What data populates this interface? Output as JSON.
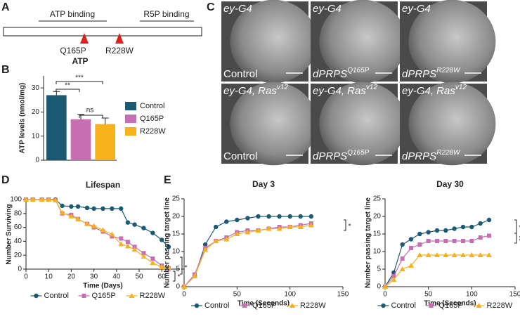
{
  "panel_labels": [
    "A",
    "B",
    "C",
    "D",
    "E"
  ],
  "protein_diagram": {
    "domains": [
      "ATP binding",
      "R5P binding"
    ],
    "mutations": [
      "Q165P",
      "R228W"
    ]
  },
  "eye_images": [
    {
      "genotype": {
        "base": "ey-G4"
      },
      "label": {
        "base": "Control"
      }
    },
    {
      "genotype": {
        "base": "ey-G4"
      },
      "label": {
        "base": "dPRPS",
        "sup": "Q165P"
      }
    },
    {
      "genotype": {
        "base": "ey-G4"
      },
      "label": {
        "base": "dPRPS",
        "sup": "R228W"
      }
    },
    {
      "genotype": {
        "base": "ey-G4, Ras",
        "sup": "v12"
      },
      "label": {
        "base": "Control"
      }
    },
    {
      "genotype": {
        "base": "ey-G4, Ras",
        "sup": "v12"
      },
      "label": {
        "base": "dPRPS",
        "sup": "Q165P"
      }
    },
    {
      "genotype": {
        "base": "ey-G4, Ras",
        "sup": "v12"
      },
      "label": {
        "base": "dPRPS",
        "sup": "R228W"
      }
    }
  ],
  "chart_data": [
    {
      "type": "bar",
      "title": "ATP",
      "ylabel": "ATP levels (nmol/mg)",
      "categories": [
        "Control",
        "Q165P",
        "R228W"
      ],
      "values": [
        27,
        17,
        15
      ],
      "errors": [
        1.5,
        2,
        2.5
      ],
      "colors": [
        "#1b5a72",
        "#c76fb3",
        "#f7b21b"
      ],
      "ylim": [
        0,
        35
      ],
      "yticks": [
        0,
        10,
        20,
        30
      ],
      "annotations": [
        "**",
        "***",
        "ns"
      ],
      "legend": "right"
    },
    {
      "type": "line",
      "title": "Lifespan",
      "xlabel": "Time (Days)",
      "ylabel": "Number Surviving",
      "x": [
        0,
        3,
        7,
        10,
        13,
        16,
        20,
        23,
        27,
        30,
        34,
        38,
        42,
        45,
        48,
        52,
        56,
        60,
        63
      ],
      "series": [
        {
          "name": "Control",
          "color": "#1b5a72",
          "marker": "circle",
          "values": [
            100,
            100,
            100,
            100,
            100,
            91,
            90,
            90,
            88,
            87,
            87,
            87,
            87,
            67,
            64,
            59,
            52,
            42,
            32
          ]
        },
        {
          "name": "Q165P",
          "color": "#c76fb3",
          "marker": "square",
          "values": [
            100,
            100,
            100,
            100,
            99,
            80,
            78,
            72,
            65,
            60,
            54,
            47,
            44,
            39,
            32,
            23,
            15,
            5,
            1
          ]
        },
        {
          "name": "R228W",
          "color": "#f7b21b",
          "marker": "triangle",
          "values": [
            100,
            100,
            100,
            100,
            99,
            81,
            76,
            72,
            65,
            62,
            56,
            50,
            36,
            33,
            28,
            18,
            9,
            3,
            2
          ]
        }
      ],
      "xlim": [
        0,
        68
      ],
      "xticks": [
        0,
        10,
        20,
        30,
        40,
        50,
        60
      ],
      "ylim": [
        0,
        100
      ],
      "yticks": [
        0,
        20,
        40,
        60,
        80,
        100
      ],
      "annotations": [
        "*",
        "*"
      ],
      "legend": "bottom"
    },
    {
      "type": "line",
      "title": "Day 3",
      "xlabel": "Time (Seconds)",
      "ylabel": "Number passing target line",
      "x": [
        0,
        10,
        20,
        30,
        40,
        50,
        60,
        70,
        80,
        90,
        100,
        110,
        120
      ],
      "series": [
        {
          "name": "Control",
          "color": "#1b5a72",
          "marker": "circle",
          "values": [
            0,
            3,
            12,
            17,
            18.5,
            19,
            19.5,
            20,
            20,
            20,
            20,
            20,
            20
          ]
        },
        {
          "name": "Q165P",
          "color": "#c76fb3",
          "marker": "square",
          "values": [
            0,
            3.5,
            11,
            13,
            14,
            15.5,
            16,
            16,
            16.5,
            17,
            17,
            17.5,
            18
          ]
        },
        {
          "name": "R228W",
          "color": "#f7b21b",
          "marker": "triangle",
          "values": [
            0,
            3,
            10.5,
            13,
            13.5,
            15,
            15.5,
            16,
            16.5,
            16.5,
            17,
            17,
            17.5
          ]
        }
      ],
      "xlim": [
        0,
        150
      ],
      "xticks": [
        0,
        50,
        100,
        150
      ],
      "ylim": [
        0,
        25
      ],
      "yticks": [
        0,
        5,
        10,
        15,
        20,
        25
      ],
      "annotations": [
        "*"
      ],
      "legend": "bottom"
    },
    {
      "type": "line",
      "title": "Day 30",
      "xlabel": "Time (Seconds)",
      "ylabel": "Number passing target line",
      "x": [
        0,
        10,
        20,
        30,
        40,
        50,
        60,
        70,
        80,
        90,
        100,
        110,
        120
      ],
      "series": [
        {
          "name": "Control",
          "color": "#1b5a72",
          "marker": "circle",
          "values": [
            0,
            4,
            12,
            13.5,
            15,
            15.5,
            16,
            16,
            16.5,
            17,
            17,
            18,
            19
          ]
        },
        {
          "name": "Q165P",
          "color": "#c76fb3",
          "marker": "square",
          "values": [
            0,
            3,
            8,
            11,
            12,
            13,
            13,
            13,
            13,
            13,
            13,
            14,
            14.5
          ]
        },
        {
          "name": "R228W",
          "color": "#f7b21b",
          "marker": "triangle",
          "values": [
            0,
            2,
            5,
            6,
            9,
            9,
            9,
            9,
            9,
            9,
            9,
            9,
            9
          ]
        }
      ],
      "xlim": [
        0,
        150
      ],
      "xticks": [
        0,
        50,
        100,
        150
      ],
      "ylim": [
        0,
        25
      ],
      "yticks": [
        0,
        5,
        10,
        15,
        20,
        25
      ],
      "annotations": [
        "*",
        "**"
      ],
      "legend": "bottom"
    }
  ]
}
